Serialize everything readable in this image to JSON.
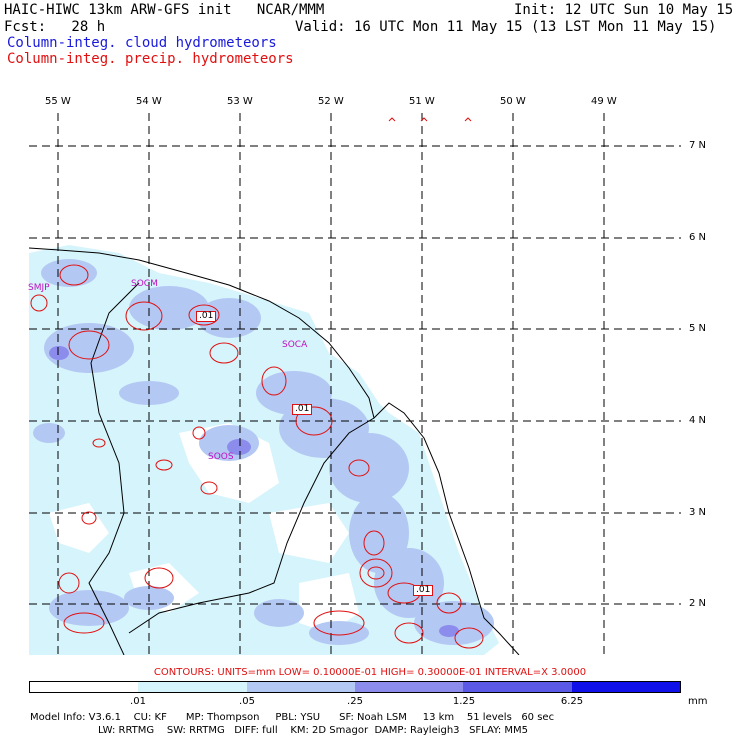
{
  "header": {
    "line1_left": "HAIC-HIWC 13km ARW-GFS init   NCAR/MMM",
    "line1_right": "Init: 12 UTC Sun 10 May 15",
    "line2_left": "Fcst:   28 h",
    "line2_right": "Valid: 16 UTC Mon 11 May 15 (13 LST Mon 11 May 15)",
    "field1": "Column-integ. cloud hydrometeors",
    "field2": "Column-integ. precip. hydrometeors"
  },
  "map": {
    "lon_labels": [
      "55 W",
      "54 W",
      "53 W",
      "52 W",
      "51 W",
      "50 W",
      "49 W"
    ],
    "lat_labels": [
      "7 N",
      "6 N",
      "5 N",
      "4 N",
      "3 N",
      "2 N"
    ],
    "stations": [
      "SMJP",
      "SOCM",
      "SOCA",
      "SOOS"
    ],
    "contour_labels": [
      ".01",
      ".01",
      ".01"
    ]
  },
  "contours_info": "CONTOURS:  UNITS=mm  LOW= 0.10000E-01  HIGH= 0.30000E-01  INTERVAL=X  3.0000",
  "colorbar": {
    "labels": [
      ".01",
      ".05",
      ".25",
      "1.25",
      "6.25"
    ],
    "unit": "mm",
    "colors": [
      "#ffffff",
      "#d6f4fb",
      "#b4c8f4",
      "#8c8cec",
      "#5a5ae6",
      "#1010e8"
    ]
  },
  "model_info": {
    "line1": "Model Info: V3.6.1    CU: KF      MP: Thompson     PBL: YSU      SF: Noah LSM     13 km    51 levels   60 sec",
    "line2": "LW: RRTMG    SW: RRTMG   DIFF: full    KM: 2D Smagor  DAMP: Rayleigh3   SFLAY: MM5"
  }
}
